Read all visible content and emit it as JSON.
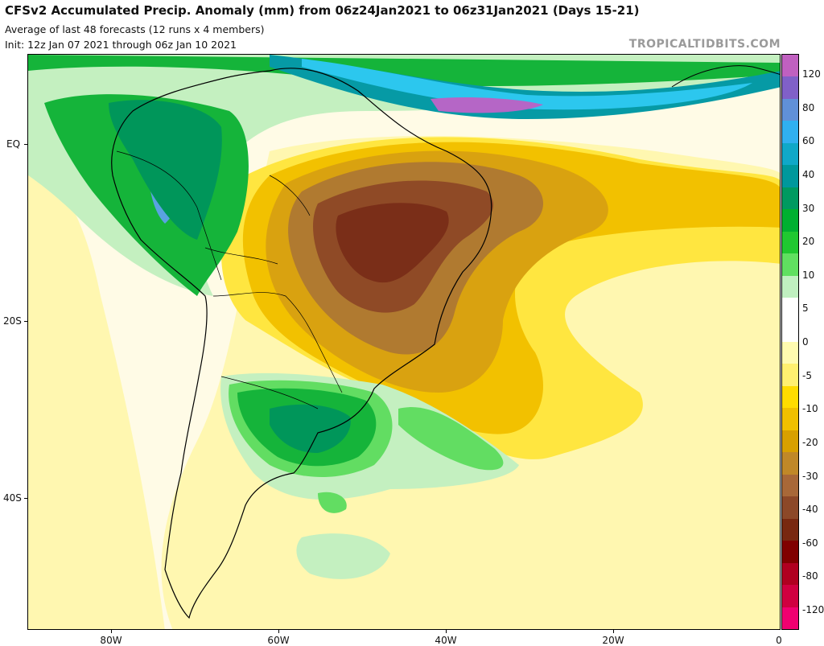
{
  "header": {
    "title": "CFSv2 Accumulated Precip. Anomaly (mm) from 06z24Jan2021 to 06z31Jan2021 (Days 15-21)",
    "subtitle": "Average of last 48 forecasts (12 runs x 4 members)",
    "init": "Init: 12z Jan 07 2021 through 06z Jan 10 2021",
    "watermark": "TROPICALTIDBITS.COM"
  },
  "axes": {
    "lat_labels": [
      "EQ",
      "20S",
      "40S"
    ],
    "lon_labels": [
      "80W",
      "60W",
      "40W",
      "20W",
      "0"
    ]
  },
  "colorbar": {
    "labels": [
      "120",
      "80",
      "60",
      "40",
      "30",
      "20",
      "10",
      "5",
      "0",
      "-5",
      "-10",
      "-20",
      "-30",
      "-40",
      "-60",
      "-80",
      "-120"
    ],
    "colors": [
      "#c060c0",
      "#8060c8",
      "#6090d8",
      "#30b0f0",
      "#10a8c8",
      "#00989c",
      "#009a60",
      "#00b030",
      "#20c830",
      "#60e060",
      "#c0f0c0",
      "#ffffff",
      "#ffffff",
      "#fffbb0",
      "#fff070",
      "#ffdc00",
      "#f0c000",
      "#d8a000",
      "#c08828",
      "#a86838",
      "#8c4828",
      "#782810",
      "#800000",
      "#b00020",
      "#d00040",
      "#f00070"
    ]
  },
  "map_colors": {
    "dry_light": "#fff7b0",
    "dry_yellow": "#ffe640",
    "dry_gold": "#f2c100",
    "dry_orange": "#d9a210",
    "dry_brown": "#b07a30",
    "dry_dark": "#8f4a26",
    "dry_deep": "#7a2e18",
    "wet_pale": "#c4f0c0",
    "wet_light": "#62dd62",
    "wet_green": "#15b43a",
    "wet_dark": "#00965a",
    "wet_teal": "#069aa5",
    "wet_cyan": "#2cc7ee",
    "wet_blue": "#5aa2e2",
    "wet_purple": "#b566c6"
  }
}
